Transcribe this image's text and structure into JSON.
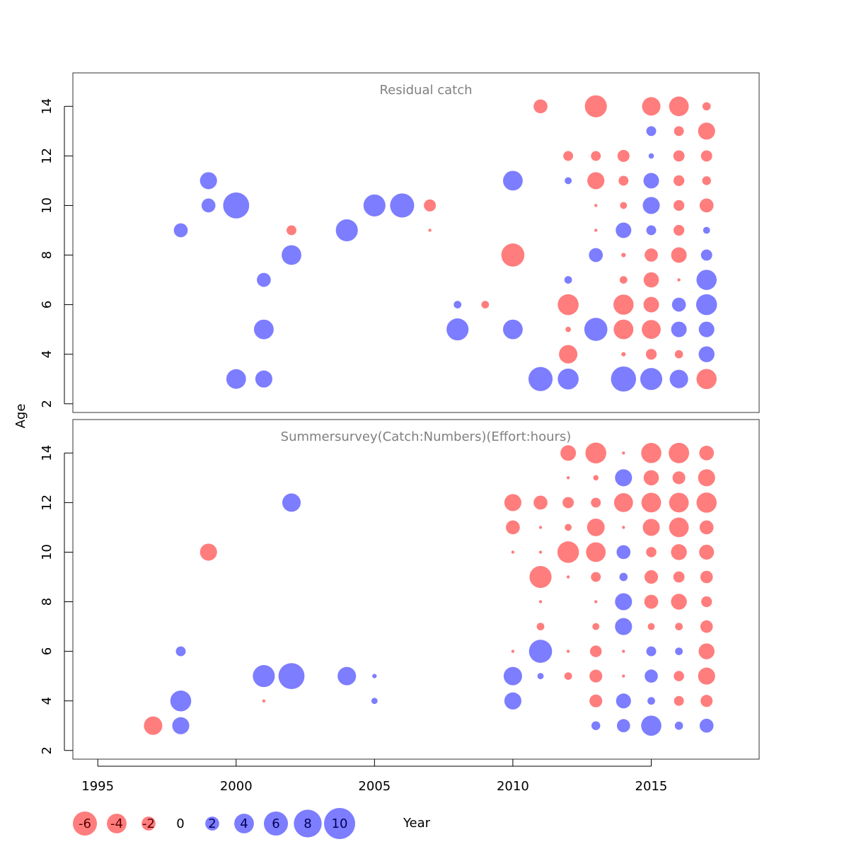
{
  "chart_data": {
    "type": "scatter",
    "subtype": "bubble",
    "xlabel": "Year",
    "ylabel": "Age",
    "xlim": [
      1994.1,
      2018.9
    ],
    "ylim": [
      1.65,
      15.35
    ],
    "x_ticks": [
      1995,
      2000,
      2005,
      2010,
      2015
    ],
    "y_ticks": [
      2,
      4,
      6,
      8,
      10,
      12,
      14
    ],
    "colors": {
      "negative": "#ff7d7d",
      "positive": "#7d7dff"
    },
    "panels": [
      {
        "title": "Residual catch",
        "points": [
          [
            1998,
            9,
            2
          ],
          [
            1999,
            11,
            3
          ],
          [
            1999,
            10,
            2
          ],
          [
            2000,
            10,
            7
          ],
          [
            2000,
            3,
            4
          ],
          [
            2001,
            7,
            2
          ],
          [
            2001,
            5,
            4
          ],
          [
            2001,
            3,
            3
          ],
          [
            2002,
            9,
            -1
          ],
          [
            2002,
            8,
            4
          ],
          [
            2004,
            9,
            5
          ],
          [
            2005,
            10,
            5
          ],
          [
            2006,
            10,
            6
          ],
          [
            2007,
            10,
            -1.5
          ],
          [
            2007,
            9,
            -0.1
          ],
          [
            2008,
            6,
            0.6
          ],
          [
            2008,
            5,
            5
          ],
          [
            2009,
            6,
            -0.6
          ],
          [
            2010,
            11,
            4
          ],
          [
            2010,
            8,
            -5.5
          ],
          [
            2010,
            5,
            4
          ],
          [
            2011,
            14,
            -2
          ],
          [
            2011,
            3,
            6
          ],
          [
            2012,
            12,
            -1
          ],
          [
            2012,
            11,
            0.5
          ],
          [
            2012,
            7,
            0.6
          ],
          [
            2012,
            6,
            -4.5
          ],
          [
            2012,
            5,
            -0.3
          ],
          [
            2012,
            4,
            -3.5
          ],
          [
            2012,
            3,
            4.5
          ],
          [
            2013,
            14,
            -5
          ],
          [
            2013,
            12,
            -1
          ],
          [
            2013,
            11,
            -3
          ],
          [
            2013,
            10,
            -0.1
          ],
          [
            2013,
            9,
            -0.1
          ],
          [
            2013,
            8,
            2
          ],
          [
            2013,
            5,
            5.5
          ],
          [
            2014,
            12,
            -1.5
          ],
          [
            2014,
            11,
            -1
          ],
          [
            2014,
            10,
            -0.5
          ],
          [
            2014,
            9,
            2.5
          ],
          [
            2014,
            8,
            -0.2
          ],
          [
            2014,
            7,
            -0.6
          ],
          [
            2014,
            6,
            -4.2
          ],
          [
            2014,
            5,
            -4
          ],
          [
            2014,
            4,
            -0.2
          ],
          [
            2014,
            3,
            6.5
          ],
          [
            2015,
            14,
            -3.5
          ],
          [
            2015,
            13,
            1
          ],
          [
            2015,
            12,
            0.3
          ],
          [
            2015,
            11,
            2.5
          ],
          [
            2015,
            10,
            3
          ],
          [
            2015,
            9,
            1
          ],
          [
            2015,
            8,
            -1.8
          ],
          [
            2015,
            7,
            -2.4
          ],
          [
            2015,
            6,
            -2.5
          ],
          [
            2015,
            5,
            -3.7
          ],
          [
            2015,
            4,
            -1.2
          ],
          [
            2015,
            3,
            5
          ],
          [
            2016,
            14,
            -4
          ],
          [
            2016,
            13,
            -1
          ],
          [
            2016,
            12,
            -1.3
          ],
          [
            2016,
            11,
            -1.2
          ],
          [
            2016,
            10,
            -1.2
          ],
          [
            2016,
            9,
            -1.2
          ],
          [
            2016,
            8,
            -2.5
          ],
          [
            2016,
            7,
            -0.1
          ],
          [
            2016,
            6,
            2
          ],
          [
            2016,
            5,
            2.5
          ],
          [
            2016,
            4,
            -0.7
          ],
          [
            2016,
            3,
            3.5
          ],
          [
            2017,
            14,
            -0.7
          ],
          [
            2017,
            13,
            -3
          ],
          [
            2017,
            12,
            -1.3
          ],
          [
            2017,
            11,
            -0.8
          ],
          [
            2017,
            10,
            -2
          ],
          [
            2017,
            9,
            0.5
          ],
          [
            2017,
            8,
            1.3
          ],
          [
            2017,
            7,
            4.2
          ],
          [
            2017,
            6,
            4.5
          ],
          [
            2017,
            5,
            2.5
          ],
          [
            2017,
            4,
            2.6
          ],
          [
            2017,
            3,
            -4.2
          ]
        ]
      },
      {
        "title": "Summersurvey(Catch:Numbers)(Effort:hours)",
        "points": [
          [
            1997,
            3,
            -3.5
          ],
          [
            1998,
            6,
            1
          ],
          [
            1998,
            4,
            4.5
          ],
          [
            1998,
            3,
            3
          ],
          [
            1999,
            10,
            -3
          ],
          [
            2001,
            5,
            5
          ],
          [
            2001,
            4,
            -0.1
          ],
          [
            2002,
            12,
            3.5
          ],
          [
            2002,
            5,
            7
          ],
          [
            2004,
            5,
            3.5
          ],
          [
            2005,
            5,
            0.2
          ],
          [
            2005,
            4,
            0.4
          ],
          [
            2010,
            12,
            -3
          ],
          [
            2010,
            11,
            -2
          ],
          [
            2010,
            10,
            -0.1
          ],
          [
            2010,
            6,
            -0.1
          ],
          [
            2010,
            5,
            3.5
          ],
          [
            2010,
            4,
            3
          ],
          [
            2011,
            12,
            -2
          ],
          [
            2011,
            11,
            -0.1
          ],
          [
            2011,
            10,
            -0.1
          ],
          [
            2011,
            9,
            -5
          ],
          [
            2011,
            8,
            -0.1
          ],
          [
            2011,
            7,
            -0.6
          ],
          [
            2011,
            6,
            5.5
          ],
          [
            2011,
            5,
            0.4
          ],
          [
            2012,
            14,
            -2.5
          ],
          [
            2012,
            13,
            -0.1
          ],
          [
            2012,
            12,
            -1.3
          ],
          [
            2012,
            11,
            -0.5
          ],
          [
            2012,
            10,
            -4.8
          ],
          [
            2012,
            9,
            -0.1
          ],
          [
            2012,
            6,
            -0.1
          ],
          [
            2012,
            5,
            -0.6
          ],
          [
            2013,
            14,
            -4.5
          ],
          [
            2013,
            13,
            -0.3
          ],
          [
            2013,
            12,
            -1
          ],
          [
            2013,
            11,
            -3.2
          ],
          [
            2013,
            10,
            -4
          ],
          [
            2013,
            9,
            -1
          ],
          [
            2013,
            8,
            -0.1
          ],
          [
            2013,
            7,
            -0.5
          ],
          [
            2013,
            6,
            -1.4
          ],
          [
            2013,
            5,
            -1.7
          ],
          [
            2013,
            4,
            -1.7
          ],
          [
            2013,
            3,
            0.8
          ],
          [
            2014,
            14,
            -0.1
          ],
          [
            2014,
            13,
            3
          ],
          [
            2014,
            12,
            -3.7
          ],
          [
            2014,
            11,
            -0.1
          ],
          [
            2014,
            10,
            2
          ],
          [
            2014,
            9,
            0.7
          ],
          [
            2014,
            8,
            3
          ],
          [
            2014,
            7,
            3
          ],
          [
            2014,
            6,
            -0.1
          ],
          [
            2014,
            5,
            -0.1
          ],
          [
            2014,
            4,
            2.3
          ],
          [
            2014,
            3,
            1.8
          ],
          [
            2015,
            14,
            -4.2
          ],
          [
            2015,
            13,
            -2.4
          ],
          [
            2015,
            12,
            -4
          ],
          [
            2015,
            11,
            -3
          ],
          [
            2015,
            10,
            -1.1
          ],
          [
            2015,
            9,
            -1.9
          ],
          [
            2015,
            8,
            -2
          ],
          [
            2015,
            7,
            -0.5
          ],
          [
            2015,
            6,
            1
          ],
          [
            2015,
            5,
            1.8
          ],
          [
            2015,
            4,
            0.6
          ],
          [
            2015,
            3,
            4.2
          ],
          [
            2016,
            14,
            -4.3
          ],
          [
            2016,
            13,
            -1.7
          ],
          [
            2016,
            12,
            -4
          ],
          [
            2016,
            11,
            -4
          ],
          [
            2016,
            10,
            -2.6
          ],
          [
            2016,
            9,
            -1.3
          ],
          [
            2016,
            8,
            -2.6
          ],
          [
            2016,
            7,
            -0.6
          ],
          [
            2016,
            6,
            0.6
          ],
          [
            2016,
            5,
            -1.1
          ],
          [
            2016,
            4,
            -1
          ],
          [
            2016,
            3,
            0.7
          ],
          [
            2017,
            14,
            -2.2
          ],
          [
            2017,
            13,
            -3
          ],
          [
            2017,
            12,
            -4.2
          ],
          [
            2017,
            11,
            -2
          ],
          [
            2017,
            10,
            -2.3
          ],
          [
            2017,
            9,
            -1.6
          ],
          [
            2017,
            8,
            -1.2
          ],
          [
            2017,
            7,
            -1.6
          ],
          [
            2017,
            6,
            -2.6
          ],
          [
            2017,
            5,
            -3
          ],
          [
            2017,
            4,
            -1.5
          ],
          [
            2017,
            3,
            2
          ]
        ]
      }
    ],
    "legend": {
      "placement": "bottom-left",
      "values": [
        -6,
        -4,
        -2,
        0,
        2,
        4,
        6,
        8,
        10
      ],
      "labels": [
        "-6",
        "-4",
        "-2",
        "0",
        "2",
        "4",
        "6",
        "8",
        "10"
      ]
    }
  }
}
